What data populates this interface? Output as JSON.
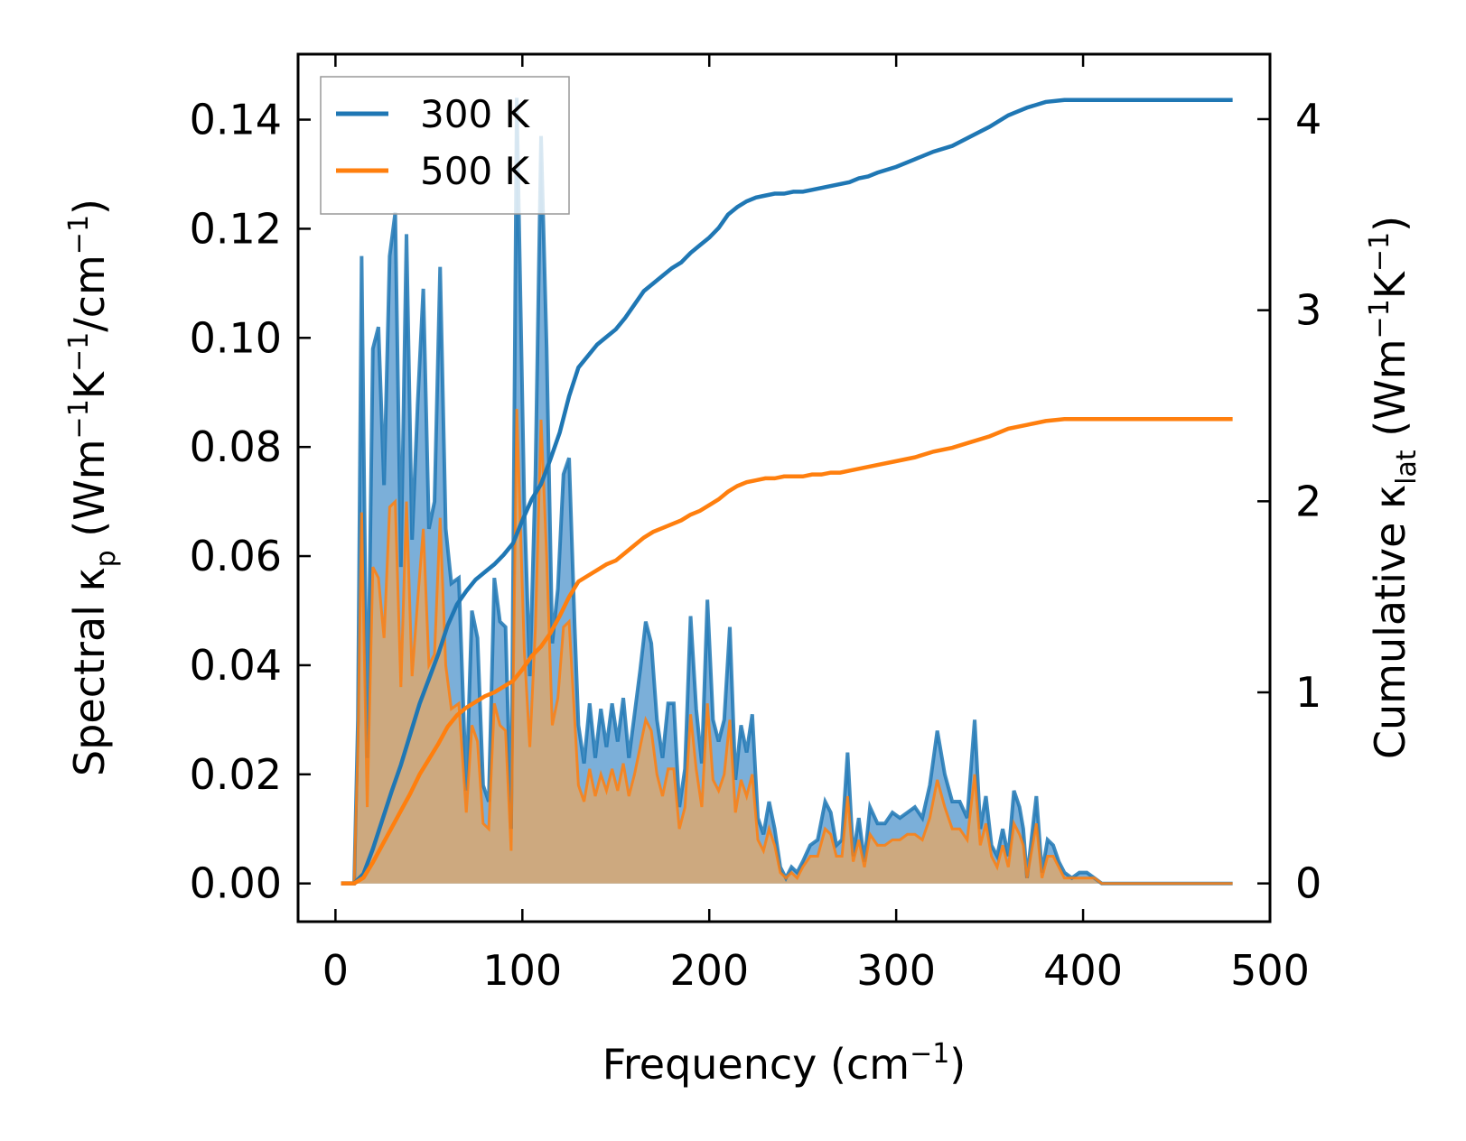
{
  "chart_data": {
    "type": "area",
    "xlabel": "Frequency (cm",
    "xlabel_sup": "−1",
    "xlabel_end": ")",
    "ylabel_left": {
      "a": "Spectral κ",
      "a_sub": "p",
      "b": " (Wm",
      "b_sup": "−1",
      "c": "K",
      "c_sup": "−1",
      "d": "/cm",
      "d_sup": "−1",
      "e": ")"
    },
    "ylabel_right": {
      "a": "Cumulative κ",
      "a_sub": "lat",
      "b": " (Wm",
      "b_sup": "−1",
      "c": "K",
      "c_sup": "−1",
      "d": ")"
    },
    "xlim": [
      -20,
      500
    ],
    "ylim_left": [
      -0.007,
      0.152
    ],
    "ylim_right": [
      -0.2,
      4.34
    ],
    "x_ticks": [
      0,
      100,
      200,
      300,
      400,
      500
    ],
    "x_tick_labels": [
      "0",
      "100",
      "200",
      "300",
      "400",
      "500"
    ],
    "y_left_ticks": [
      0.0,
      0.02,
      0.04,
      0.06,
      0.08,
      0.1,
      0.12,
      0.14
    ],
    "y_left_tick_labels": [
      "0.00",
      "0.02",
      "0.04",
      "0.06",
      "0.08",
      "0.10",
      "0.12",
      "0.14"
    ],
    "y_right_ticks": [
      0,
      1,
      2,
      3,
      4
    ],
    "y_right_tick_labels": [
      "0",
      "1",
      "2",
      "3",
      "4"
    ],
    "legend": {
      "position": "top-left",
      "entries": [
        "300 K",
        "500 K"
      ]
    },
    "colors": {
      "s300": "#1f77b4",
      "s500": "#ff7f0e",
      "fill300": "#5a9bd0",
      "fill500": "#d6a874"
    },
    "spectral_300K": {
      "x": [
        3,
        10,
        12,
        14,
        17,
        20,
        23,
        26,
        29,
        32,
        35,
        38,
        41,
        44,
        47,
        50,
        53,
        56,
        59,
        62,
        66,
        70,
        73,
        76,
        79,
        82,
        85,
        88,
        91,
        94,
        97,
        99,
        101,
        104,
        107,
        110,
        113,
        116,
        119,
        122,
        125,
        128,
        130,
        133,
        136,
        139,
        142,
        145,
        148,
        151,
        154,
        157,
        160,
        163,
        166,
        169,
        172,
        175,
        178,
        181,
        184,
        187,
        190,
        193,
        196,
        199,
        202,
        205,
        208,
        211,
        214,
        217,
        220,
        223,
        226,
        229,
        232,
        235,
        238,
        241,
        244,
        247,
        250,
        254,
        258,
        262,
        265,
        268,
        271,
        274,
        277,
        280,
        283,
        286,
        290,
        294,
        298,
        302,
        306,
        310,
        314,
        318,
        322,
        326,
        330,
        334,
        338,
        342,
        345,
        348,
        351,
        354,
        357,
        360,
        363,
        366,
        368,
        370,
        372,
        375,
        378,
        381,
        384,
        387,
        390,
        394,
        398,
        402,
        406,
        410,
        415,
        420,
        430,
        440,
        460,
        480
      ],
      "y": [
        0,
        0,
        0.03,
        0.115,
        0.023,
        0.098,
        0.102,
        0.073,
        0.115,
        0.123,
        0.058,
        0.119,
        0.063,
        0.088,
        0.109,
        0.065,
        0.07,
        0.113,
        0.065,
        0.055,
        0.056,
        0.017,
        0.05,
        0.045,
        0.018,
        0.015,
        0.056,
        0.048,
        0.047,
        0.01,
        0.144,
        0.107,
        0.07,
        0.038,
        0.075,
        0.137,
        0.098,
        0.044,
        0.054,
        0.075,
        0.078,
        0.047,
        0.029,
        0.022,
        0.033,
        0.023,
        0.032,
        0.025,
        0.033,
        0.026,
        0.034,
        0.023,
        0.031,
        0.039,
        0.048,
        0.044,
        0.03,
        0.023,
        0.033,
        0.033,
        0.014,
        0.021,
        0.049,
        0.032,
        0.022,
        0.052,
        0.03,
        0.026,
        0.03,
        0.047,
        0.019,
        0.029,
        0.024,
        0.031,
        0.012,
        0.009,
        0.015,
        0.01,
        0.003,
        0.001,
        0.003,
        0.002,
        0.004,
        0.007,
        0.008,
        0.015,
        0.013,
        0.007,
        0.008,
        0.024,
        0.005,
        0.012,
        0.004,
        0.014,
        0.011,
        0.011,
        0.013,
        0.012,
        0.013,
        0.014,
        0.012,
        0.018,
        0.028,
        0.02,
        0.015,
        0.015,
        0.012,
        0.03,
        0.01,
        0.016,
        0.007,
        0.005,
        0.01,
        0.005,
        0.017,
        0.014,
        0.01,
        0.001,
        0.007,
        0.016,
        0.002,
        0.008,
        0.007,
        0.004,
        0.002,
        0.001,
        0.002,
        0.002,
        0.001,
        0,
        0,
        0,
        0,
        0,
        0,
        0
      ]
    },
    "spectral_500K": {
      "x": [
        3,
        10,
        12,
        14,
        17,
        20,
        23,
        26,
        29,
        32,
        35,
        38,
        41,
        44,
        47,
        50,
        53,
        56,
        59,
        62,
        66,
        70,
        73,
        76,
        79,
        82,
        85,
        88,
        91,
        94,
        97,
        99,
        101,
        104,
        107,
        110,
        113,
        116,
        119,
        122,
        125,
        128,
        130,
        133,
        136,
        139,
        142,
        145,
        148,
        151,
        154,
        157,
        160,
        163,
        166,
        169,
        172,
        175,
        178,
        181,
        184,
        187,
        190,
        193,
        196,
        199,
        202,
        205,
        208,
        211,
        214,
        217,
        220,
        223,
        226,
        229,
        232,
        235,
        238,
        241,
        244,
        247,
        250,
        254,
        258,
        262,
        265,
        268,
        271,
        274,
        277,
        280,
        283,
        286,
        290,
        294,
        298,
        302,
        306,
        310,
        314,
        318,
        322,
        326,
        330,
        334,
        338,
        342,
        345,
        348,
        351,
        354,
        357,
        360,
        363,
        366,
        368,
        370,
        372,
        375,
        378,
        381,
        384,
        387,
        390,
        394,
        398,
        402,
        406,
        410,
        415,
        420,
        430,
        440,
        460,
        480
      ],
      "y": [
        0,
        0,
        0.025,
        0.068,
        0.014,
        0.058,
        0.056,
        0.045,
        0.069,
        0.07,
        0.036,
        0.07,
        0.038,
        0.052,
        0.065,
        0.04,
        0.042,
        0.067,
        0.04,
        0.032,
        0.033,
        0.013,
        0.029,
        0.026,
        0.011,
        0.01,
        0.033,
        0.029,
        0.028,
        0.006,
        0.087,
        0.065,
        0.043,
        0.025,
        0.047,
        0.085,
        0.06,
        0.029,
        0.034,
        0.047,
        0.048,
        0.03,
        0.018,
        0.015,
        0.021,
        0.016,
        0.02,
        0.017,
        0.021,
        0.017,
        0.022,
        0.016,
        0.02,
        0.025,
        0.03,
        0.028,
        0.02,
        0.016,
        0.021,
        0.021,
        0.01,
        0.014,
        0.031,
        0.021,
        0.014,
        0.033,
        0.019,
        0.017,
        0.02,
        0.03,
        0.013,
        0.019,
        0.016,
        0.02,
        0.008,
        0.006,
        0.01,
        0.007,
        0.002,
        0.001,
        0.002,
        0.001,
        0.003,
        0.005,
        0.005,
        0.01,
        0.009,
        0.005,
        0.005,
        0.016,
        0.004,
        0.008,
        0.003,
        0.009,
        0.007,
        0.007,
        0.008,
        0.008,
        0.009,
        0.009,
        0.008,
        0.012,
        0.019,
        0.014,
        0.01,
        0.01,
        0.008,
        0.02,
        0.007,
        0.011,
        0.005,
        0.003,
        0.007,
        0.003,
        0.011,
        0.009,
        0.007,
        0.001,
        0.005,
        0.011,
        0.001,
        0.005,
        0.005,
        0.003,
        0.001,
        0.001,
        0.001,
        0.001,
        0.001,
        0,
        0,
        0,
        0,
        0,
        0,
        0
      ]
    },
    "cumulative_300K": {
      "x": [
        3,
        10,
        15,
        20,
        25,
        30,
        35,
        40,
        45,
        50,
        55,
        60,
        65,
        70,
        75,
        80,
        85,
        90,
        95,
        100,
        105,
        110,
        115,
        120,
        125,
        130,
        135,
        140,
        145,
        150,
        155,
        160,
        165,
        170,
        175,
        180,
        185,
        190,
        195,
        200,
        205,
        210,
        215,
        220,
        225,
        230,
        235,
        240,
        245,
        250,
        255,
        260,
        265,
        270,
        275,
        280,
        285,
        290,
        300,
        310,
        320,
        330,
        340,
        350,
        360,
        370,
        380,
        390,
        400,
        420,
        440,
        460,
        480
      ],
      "y": [
        0,
        0,
        0.05,
        0.18,
        0.33,
        0.48,
        0.62,
        0.78,
        0.94,
        1.07,
        1.2,
        1.35,
        1.46,
        1.53,
        1.59,
        1.63,
        1.67,
        1.72,
        1.78,
        1.9,
        2.01,
        2.09,
        2.22,
        2.36,
        2.55,
        2.7,
        2.76,
        2.82,
        2.86,
        2.9,
        2.96,
        3.03,
        3.1,
        3.14,
        3.18,
        3.22,
        3.25,
        3.3,
        3.34,
        3.38,
        3.43,
        3.5,
        3.54,
        3.57,
        3.59,
        3.6,
        3.61,
        3.61,
        3.62,
        3.62,
        3.63,
        3.64,
        3.65,
        3.66,
        3.67,
        3.69,
        3.7,
        3.72,
        3.75,
        3.79,
        3.83,
        3.86,
        3.91,
        3.96,
        4.02,
        4.06,
        4.09,
        4.1,
        4.1,
        4.1,
        4.1,
        4.1,
        4.1
      ]
    },
    "cumulative_500K": {
      "x": [
        3,
        10,
        15,
        20,
        25,
        30,
        35,
        40,
        45,
        50,
        55,
        60,
        65,
        70,
        75,
        80,
        85,
        90,
        95,
        100,
        105,
        110,
        115,
        120,
        125,
        130,
        135,
        140,
        145,
        150,
        155,
        160,
        165,
        170,
        175,
        180,
        185,
        190,
        195,
        200,
        205,
        210,
        215,
        220,
        225,
        230,
        235,
        240,
        245,
        250,
        255,
        260,
        265,
        270,
        275,
        280,
        285,
        290,
        300,
        310,
        320,
        330,
        340,
        350,
        360,
        370,
        380,
        390,
        400,
        420,
        440,
        460,
        480
      ],
      "y": [
        0,
        0,
        0.03,
        0.11,
        0.2,
        0.29,
        0.38,
        0.47,
        0.57,
        0.65,
        0.73,
        0.82,
        0.88,
        0.92,
        0.95,
        0.98,
        1.0,
        1.03,
        1.06,
        1.12,
        1.19,
        1.24,
        1.31,
        1.4,
        1.5,
        1.58,
        1.61,
        1.64,
        1.67,
        1.69,
        1.73,
        1.77,
        1.81,
        1.84,
        1.86,
        1.88,
        1.9,
        1.93,
        1.95,
        1.98,
        2.01,
        2.05,
        2.08,
        2.1,
        2.11,
        2.12,
        2.12,
        2.13,
        2.13,
        2.13,
        2.14,
        2.14,
        2.15,
        2.15,
        2.16,
        2.17,
        2.18,
        2.19,
        2.21,
        2.23,
        2.26,
        2.28,
        2.31,
        2.34,
        2.38,
        2.4,
        2.42,
        2.43,
        2.43,
        2.43,
        2.43,
        2.43,
        2.43
      ]
    }
  }
}
